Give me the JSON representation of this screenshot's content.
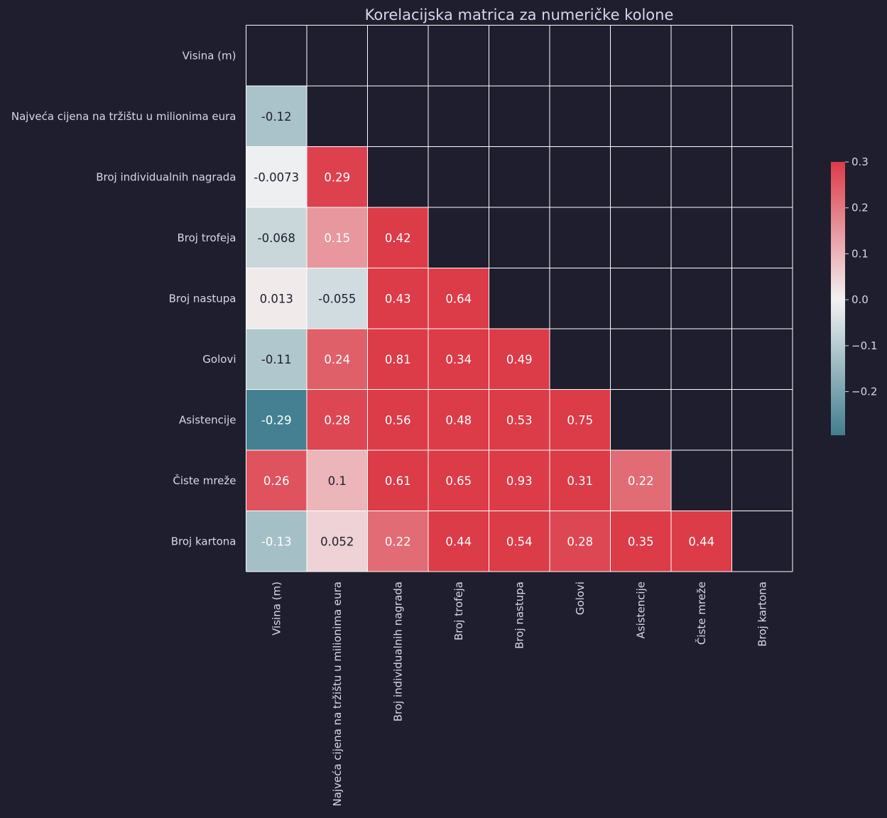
{
  "chart_data": {
    "type": "heatmap",
    "title": "Korelacijska matrica za numeričke kolone",
    "labels": [
      "Visina (m)",
      "Najveća cijena na tržištu u milionima eura",
      "Broj individualnih nagrada",
      "Broj trofeja",
      "Broj nastupa",
      "Golovi",
      "Asistencije",
      "Čiste mreže",
      "Broj kartona"
    ],
    "mask": "upper-triangle-including-diagonal",
    "values": [
      [
        null,
        null,
        null,
        null,
        null,
        null,
        null,
        null,
        null
      ],
      [
        -0.12,
        null,
        null,
        null,
        null,
        null,
        null,
        null,
        null
      ],
      [
        -0.0073,
        0.29,
        null,
        null,
        null,
        null,
        null,
        null,
        null
      ],
      [
        -0.068,
        0.15,
        0.42,
        null,
        null,
        null,
        null,
        null,
        null
      ],
      [
        0.013,
        -0.055,
        0.43,
        0.64,
        null,
        null,
        null,
        null,
        null
      ],
      [
        -0.11,
        0.24,
        0.81,
        0.34,
        0.49,
        null,
        null,
        null,
        null
      ],
      [
        -0.29,
        0.28,
        0.56,
        0.48,
        0.53,
        0.75,
        null,
        null,
        null
      ],
      [
        0.26,
        0.1,
        0.61,
        0.65,
        0.93,
        0.31,
        0.22,
        null,
        null
      ],
      [
        -0.13,
        0.052,
        0.22,
        0.44,
        0.54,
        0.28,
        0.35,
        0.44,
        null
      ]
    ],
    "value_labels": [
      [
        "",
        "",
        "",
        "",
        "",
        "",
        "",
        "",
        ""
      ],
      [
        "-0.12",
        "",
        "",
        "",
        "",
        "",
        "",
        "",
        ""
      ],
      [
        "-0.0073",
        "0.29",
        "",
        "",
        "",
        "",
        "",
        "",
        ""
      ],
      [
        "-0.068",
        "0.15",
        "0.42",
        "",
        "",
        "",
        "",
        "",
        ""
      ],
      [
        "0.013",
        "-0.055",
        "0.43",
        "0.64",
        "",
        "",
        "",
        "",
        ""
      ],
      [
        "-0.11",
        "0.24",
        "0.81",
        "0.34",
        "0.49",
        "",
        "",
        "",
        ""
      ],
      [
        "-0.29",
        "0.28",
        "0.56",
        "0.48",
        "0.53",
        "0.75",
        "",
        "",
        ""
      ],
      [
        "0.26",
        "0.1",
        "0.61",
        "0.65",
        "0.93",
        "0.31",
        "0.22",
        "",
        ""
      ],
      [
        "-0.13",
        "0.052",
        "0.22",
        "0.44",
        "0.54",
        "0.28",
        "0.35",
        "0.44",
        ""
      ]
    ],
    "colorbar": {
      "min": -0.295,
      "max": 0.3,
      "ticks": [
        0.3,
        0.2,
        0.1,
        0.0,
        -0.1,
        -0.2
      ],
      "tick_labels": [
        "0.3",
        "0.2",
        "0.1",
        "0.0",
        "−0.1",
        "−0.2"
      ]
    },
    "colors": {
      "background": "#1f1e2e",
      "negative": "#417e8f",
      "center": "#f2f2f2",
      "positive": "#dc3b48",
      "grid_line": "#ffffff",
      "text": "#d8d6ec",
      "label_dark": "#1f1e2e",
      "label_light": "#ffffff"
    }
  }
}
